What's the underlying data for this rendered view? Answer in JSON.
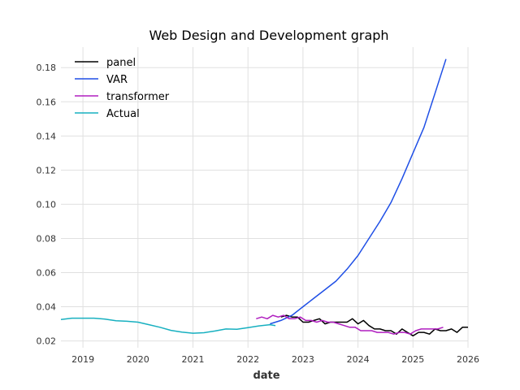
{
  "chart_data": {
    "type": "line",
    "title": "Web Design and Development graph",
    "xlabel": "date",
    "ylabel": "",
    "xlim": [
      2018.6,
      2026.0
    ],
    "ylim": [
      0.016,
      0.192
    ],
    "x_ticks": [
      2019,
      2020,
      2021,
      2022,
      2023,
      2024,
      2025,
      2026
    ],
    "x_tick_labels": [
      "2019",
      "2020",
      "2021",
      "2022",
      "2023",
      "2024",
      "2025",
      "2026"
    ],
    "y_ticks": [
      0.02,
      0.04,
      0.06,
      0.08,
      0.1,
      0.12,
      0.14,
      0.16,
      0.18
    ],
    "y_tick_labels": [
      "0.02",
      "0.04",
      "0.06",
      "0.08",
      "0.10",
      "0.12",
      "0.14",
      "0.16",
      "0.18"
    ],
    "grid": true,
    "legend_position": "top-left",
    "series": [
      {
        "name": "panel",
        "color": "#000000",
        "x": [
          2022.6,
          2022.7,
          2022.8,
          2022.9,
          2023.0,
          2023.1,
          2023.2,
          2023.3,
          2023.4,
          2023.5,
          2023.6,
          2023.7,
          2023.8,
          2023.9,
          2024.0,
          2024.1,
          2024.2,
          2024.3,
          2024.4,
          2024.5,
          2024.6,
          2024.7,
          2024.8,
          2024.9,
          2025.0,
          2025.1,
          2025.2,
          2025.3,
          2025.4,
          2025.5,
          2025.6,
          2025.7,
          2025.8,
          2025.9,
          2026.0
        ],
        "y": [
          0.034,
          0.035,
          0.034,
          0.034,
          0.031,
          0.031,
          0.032,
          0.033,
          0.03,
          0.031,
          0.031,
          0.031,
          0.031,
          0.033,
          0.03,
          0.032,
          0.029,
          0.027,
          0.027,
          0.026,
          0.026,
          0.024,
          0.027,
          0.025,
          0.023,
          0.025,
          0.025,
          0.024,
          0.027,
          0.026,
          0.026,
          0.027,
          0.025,
          0.028,
          0.028
        ]
      },
      {
        "name": "VAR",
        "color": "#1f4fe6",
        "x": [
          2022.4,
          2022.6,
          2022.8,
          2023.0,
          2023.2,
          2023.4,
          2023.6,
          2023.8,
          2024.0,
          2024.2,
          2024.4,
          2024.6,
          2024.8,
          2025.0,
          2025.2,
          2025.4,
          2025.6
        ],
        "y": [
          0.03,
          0.032,
          0.035,
          0.04,
          0.045,
          0.05,
          0.055,
          0.062,
          0.07,
          0.08,
          0.09,
          0.101,
          0.115,
          0.13,
          0.145,
          0.165,
          0.185
        ]
      },
      {
        "name": "transformer",
        "color": "#b01fc0",
        "x": [
          2022.15,
          2022.25,
          2022.35,
          2022.45,
          2022.55,
          2022.65,
          2022.75,
          2022.85,
          2022.95,
          2023.05,
          2023.15,
          2023.25,
          2023.35,
          2023.45,
          2023.55,
          2023.65,
          2023.75,
          2023.85,
          2023.95,
          2024.05,
          2024.15,
          2024.25,
          2024.35,
          2024.45,
          2024.55,
          2024.65,
          2024.75,
          2024.85,
          2024.95,
          2025.05,
          2025.15,
          2025.25,
          2025.35,
          2025.45,
          2025.55
        ],
        "y": [
          0.033,
          0.034,
          0.033,
          0.035,
          0.034,
          0.035,
          0.033,
          0.033,
          0.034,
          0.032,
          0.032,
          0.031,
          0.032,
          0.031,
          0.031,
          0.03,
          0.029,
          0.028,
          0.028,
          0.026,
          0.026,
          0.026,
          0.025,
          0.025,
          0.025,
          0.024,
          0.025,
          0.025,
          0.024,
          0.026,
          0.027,
          0.027,
          0.027,
          0.027,
          0.028
        ]
      },
      {
        "name": "Actual",
        "color": "#17b0c0",
        "x": [
          2018.6,
          2018.8,
          2019.0,
          2019.2,
          2019.4,
          2019.6,
          2019.8,
          2020.0,
          2020.2,
          2020.4,
          2020.6,
          2020.8,
          2021.0,
          2021.2,
          2021.4,
          2021.6,
          2021.8,
          2022.0,
          2022.2,
          2022.4,
          2022.5
        ],
        "y": [
          0.0325,
          0.0333,
          0.0333,
          0.0333,
          0.0328,
          0.0318,
          0.0315,
          0.031,
          0.0295,
          0.028,
          0.0262,
          0.0252,
          0.0245,
          0.0248,
          0.0258,
          0.027,
          0.0268,
          0.0278,
          0.0288,
          0.0295,
          0.029
        ]
      }
    ]
  }
}
